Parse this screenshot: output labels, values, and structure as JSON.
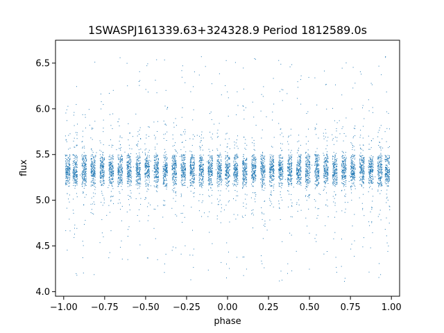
{
  "chart_data": {
    "type": "scatter",
    "title": "1SWASPJ161339.63+324328.9 Period 1812589.0s",
    "xlabel": "phase",
    "ylabel": "flux",
    "xlim": [
      -1.05,
      1.05
    ],
    "ylim": [
      3.95,
      6.75
    ],
    "x_ticks": [
      -1.0,
      -0.75,
      -0.5,
      -0.25,
      0.0,
      0.25,
      0.5,
      0.75,
      1.0
    ],
    "x_tick_labels": [
      "−1.00",
      "−0.75",
      "−0.50",
      "−0.25",
      "0.00",
      "0.25",
      "0.50",
      "0.75",
      "1.00"
    ],
    "y_ticks": [
      4.0,
      4.5,
      5.0,
      5.5,
      6.0,
      6.5
    ],
    "y_tick_labels": [
      "4.0",
      "4.5",
      "5.0",
      "5.5",
      "6.0",
      "6.5"
    ],
    "grid": false,
    "marker_color": "#1f77b4",
    "series": [
      {
        "clusters_phase_centers": [
          -0.975,
          -0.93,
          -0.875,
          -0.82,
          -0.765,
          -0.71,
          -0.655,
          -0.6,
          -0.545,
          -0.49,
          -0.435,
          -0.38,
          -0.325,
          -0.27,
          -0.215,
          -0.16,
          -0.105,
          -0.05,
          0.0,
          0.05,
          0.105,
          0.16,
          0.215,
          0.27,
          0.325,
          0.38,
          0.435,
          0.49,
          0.545,
          0.6,
          0.655,
          0.71,
          0.765,
          0.82,
          0.875,
          0.93,
          0.975
        ],
        "core_flux_range": [
          5.15,
          5.5
        ],
        "flux_median": 5.33,
        "outlier_flux_range": [
          4.05,
          6.62
        ],
        "phase_range": [
          -1.0,
          1.0
        ]
      }
    ]
  }
}
